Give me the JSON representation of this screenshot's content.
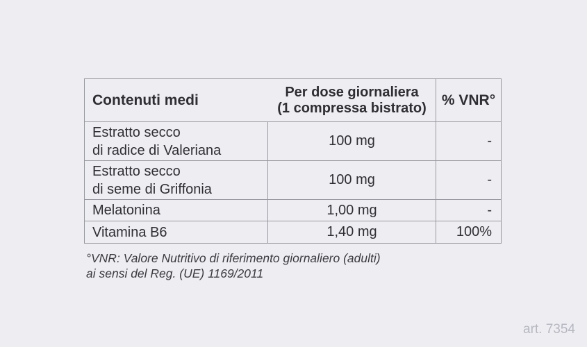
{
  "page": {
    "background_color": "#eeeef2",
    "art_number": "art. 7354"
  },
  "table": {
    "border_color": "#97979f",
    "text_color": "#2e2e33",
    "headers": {
      "contents": "Contenuti medi",
      "dose": "Per dose giornaliera\n(1 compressa bistrato)",
      "vnr": "% VNR°"
    },
    "rows": [
      {
        "name": "Estratto secco\ndi radice di Valeriana",
        "amount": "100 mg",
        "vnr": "-"
      },
      {
        "name": "Estratto secco\ndi seme di Griffonia",
        "amount": "100 mg",
        "vnr": "-"
      },
      {
        "name": "Melatonina",
        "amount": "1,00 mg",
        "vnr": "-"
      },
      {
        "name": "Vitamina B6",
        "amount": "1,40 mg",
        "vnr": "100%"
      }
    ]
  },
  "footnote": {
    "text": "°VNR: Valore Nutritivo di riferimento giornaliero (adulti)\nai sensi del Reg. (UE) 1169/2011"
  }
}
